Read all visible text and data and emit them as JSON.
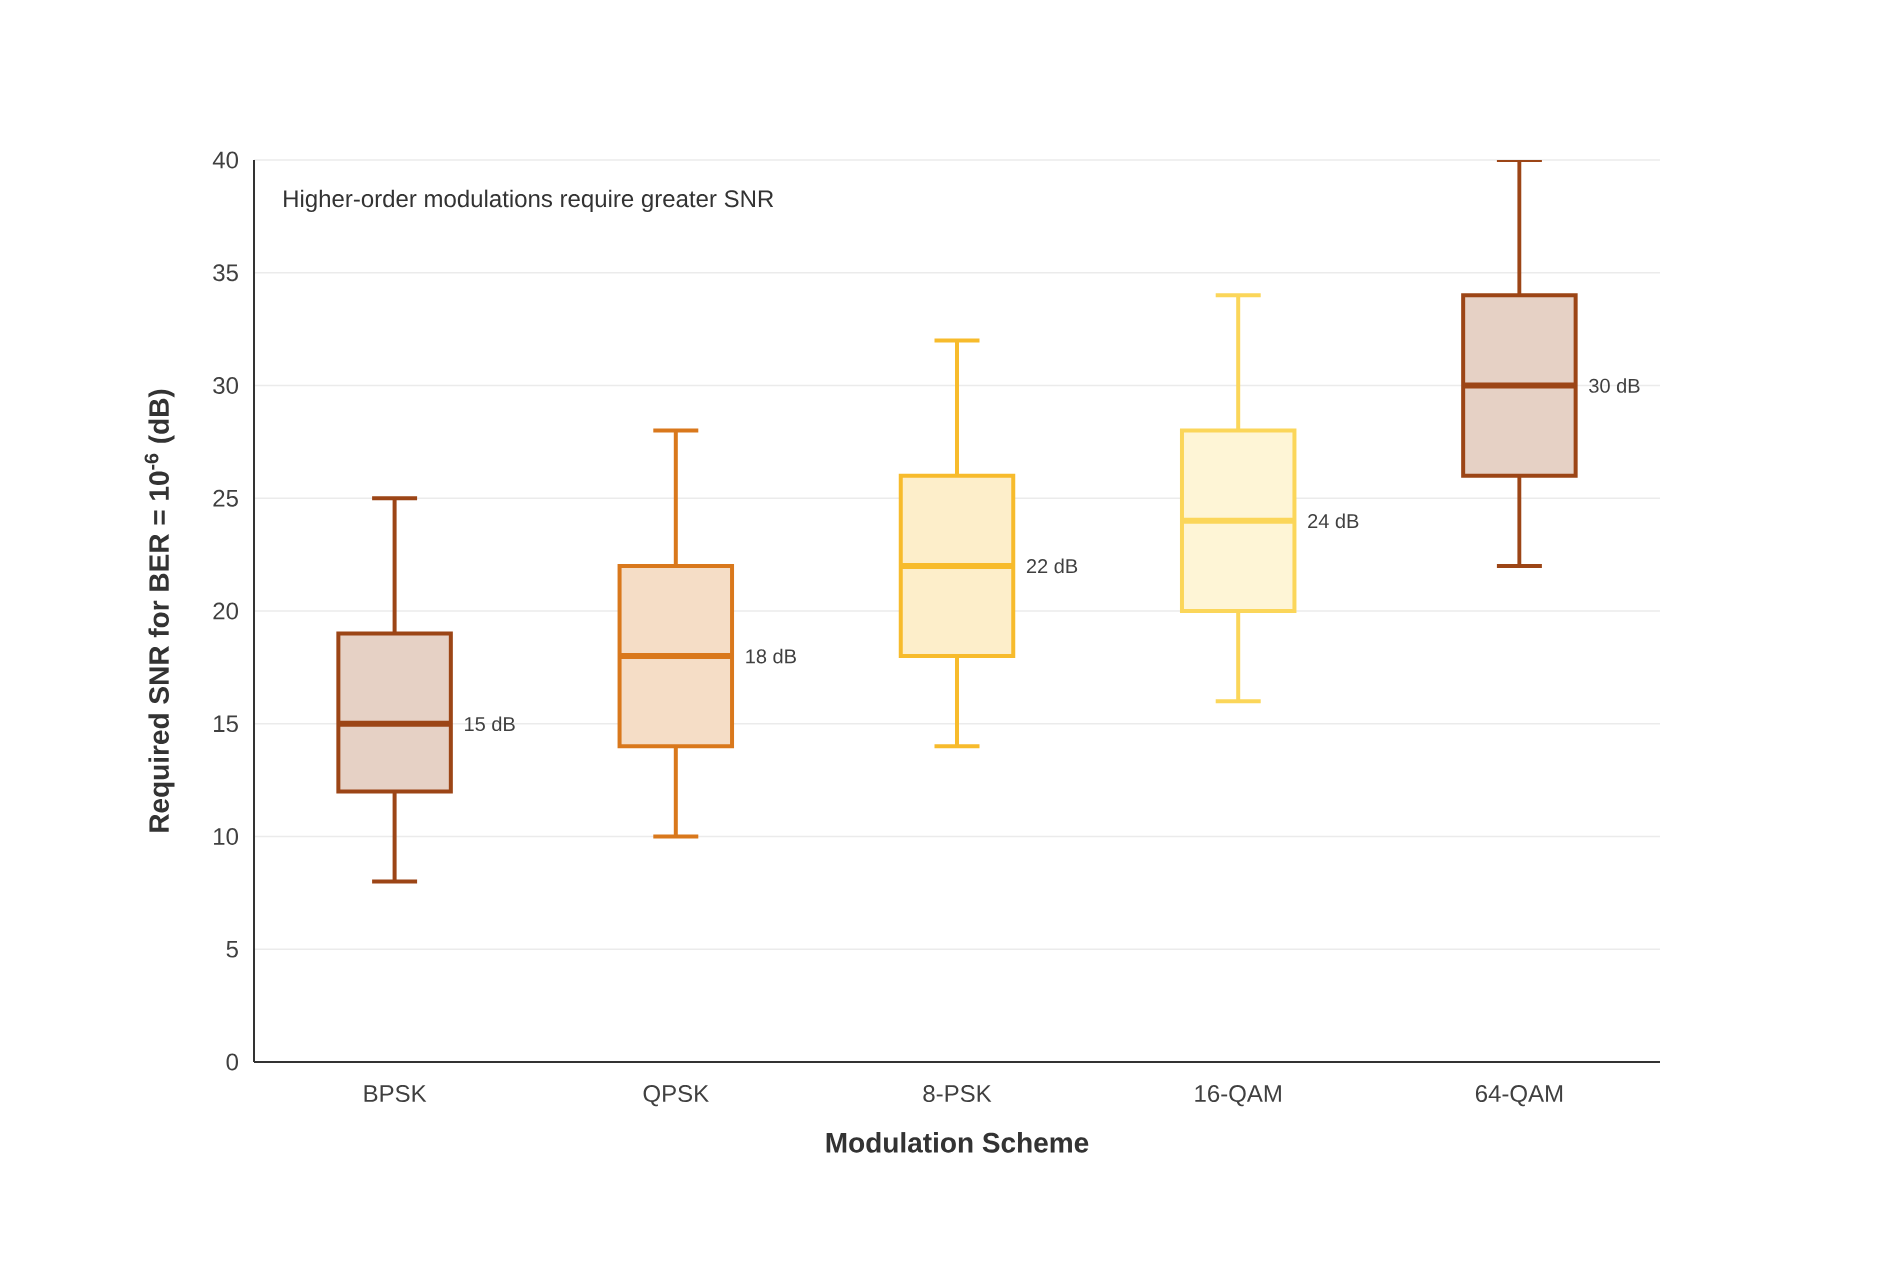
{
  "chart_data": {
    "type": "box",
    "categories": [
      "BPSK",
      "QPSK",
      "8-PSK",
      "16-QAM",
      "64-QAM"
    ],
    "boxes": [
      {
        "low": 8,
        "q1": 12,
        "median": 15,
        "q3": 19,
        "high": 25
      },
      {
        "low": 10,
        "q1": 14,
        "median": 18,
        "q3": 22,
        "high": 28
      },
      {
        "low": 14,
        "q1": 18,
        "median": 22,
        "q3": 26,
        "high": 32
      },
      {
        "low": 16,
        "q1": 20,
        "median": 24,
        "q3": 28,
        "high": 34
      },
      {
        "low": 22,
        "q1": 26,
        "median": 30,
        "q3": 34,
        "high": 40
      }
    ],
    "colors": [
      "#9c4516",
      "#d9781c",
      "#f7bb2c",
      "#fbd65a",
      "#9c4516"
    ],
    "xlabel": "Modulation Scheme",
    "ylabel": "Required SNR for BER = 10$^{-6}$ (dB)",
    "ylim": [
      0,
      40
    ],
    "yticks": [
      0,
      5,
      10,
      15,
      20,
      25,
      30,
      35,
      40
    ],
    "grid": "y",
    "annotations": [
      "Higher-order modulations require greater SNR",
      "15 dB",
      "18 dB",
      "22 dB",
      "24 dB",
      "30 dB"
    ]
  }
}
